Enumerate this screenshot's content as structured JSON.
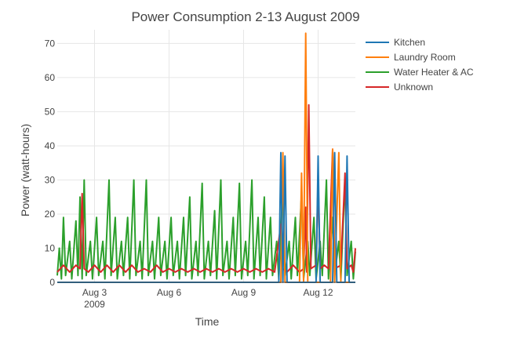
{
  "chart_data": {
    "type": "line",
    "title": "Power Consumption 2-13 August 2009",
    "xlabel": "Time",
    "ylabel": "Power (watt-hours)",
    "x_range": [
      "2009-08-01 12:00",
      "2009-08-13 12:00"
    ],
    "ylim": [
      0,
      74
    ],
    "x_ticks": [
      {
        "date": "2009-08-03",
        "label": "Aug 3",
        "sublabel": "2009"
      },
      {
        "date": "2009-08-06",
        "label": "Aug 6",
        "sublabel": ""
      },
      {
        "date": "2009-08-09",
        "label": "Aug 9",
        "sublabel": ""
      },
      {
        "date": "2009-08-12",
        "label": "Aug 12",
        "sublabel": ""
      }
    ],
    "y_ticks": [
      0,
      10,
      20,
      30,
      40,
      50,
      60,
      70
    ],
    "grid": true,
    "legend_position": "top-right",
    "series": [
      {
        "name": "Water Heater & AC",
        "color": "#2ca02c",
        "points": [
          [
            "2009-08-01 12:00",
            2
          ],
          [
            "2009-08-01 14:00",
            10
          ],
          [
            "2009-08-01 16:00",
            1
          ],
          [
            "2009-08-01 18:00",
            19
          ],
          [
            "2009-08-01 20:00",
            2
          ],
          [
            "2009-08-02 00:00",
            12
          ],
          [
            "2009-08-02 02:00",
            1
          ],
          [
            "2009-08-02 06:00",
            18
          ],
          [
            "2009-08-02 08:00",
            2
          ],
          [
            "2009-08-02 10:00",
            25
          ],
          [
            "2009-08-02 12:00",
            1
          ],
          [
            "2009-08-02 14:00",
            30
          ],
          [
            "2009-08-02 16:00",
            2
          ],
          [
            "2009-08-02 20:00",
            12
          ],
          [
            "2009-08-02 22:00",
            1
          ],
          [
            "2009-08-03 02:00",
            19
          ],
          [
            "2009-08-03 04:00",
            2
          ],
          [
            "2009-08-03 08:00",
            12
          ],
          [
            "2009-08-03 10:00",
            1
          ],
          [
            "2009-08-03 14:00",
            30
          ],
          [
            "2009-08-03 16:00",
            2
          ],
          [
            "2009-08-03 20:00",
            19
          ],
          [
            "2009-08-03 22:00",
            1
          ],
          [
            "2009-08-04 02:00",
            12
          ],
          [
            "2009-08-04 04:00",
            2
          ],
          [
            "2009-08-04 08:00",
            19
          ],
          [
            "2009-08-04 10:00",
            1
          ],
          [
            "2009-08-04 14:00",
            30
          ],
          [
            "2009-08-04 16:00",
            2
          ],
          [
            "2009-08-04 20:00",
            12
          ],
          [
            "2009-08-04 22:00",
            1
          ],
          [
            "2009-08-05 02:00",
            30
          ],
          [
            "2009-08-05 04:00",
            2
          ],
          [
            "2009-08-05 08:00",
            12
          ],
          [
            "2009-08-05 10:00",
            1
          ],
          [
            "2009-08-05 14:00",
            19
          ],
          [
            "2009-08-05 16:00",
            2
          ],
          [
            "2009-08-05 20:00",
            12
          ],
          [
            "2009-08-05 22:00",
            1
          ],
          [
            "2009-08-06 02:00",
            19
          ],
          [
            "2009-08-06 04:00",
            2
          ],
          [
            "2009-08-06 08:00",
            12
          ],
          [
            "2009-08-06 10:00",
            1
          ],
          [
            "2009-08-06 14:00",
            19
          ],
          [
            "2009-08-06 16:00",
            2
          ],
          [
            "2009-08-06 20:00",
            25
          ],
          [
            "2009-08-06 22:00",
            1
          ],
          [
            "2009-08-07 02:00",
            12
          ],
          [
            "2009-08-07 04:00",
            2
          ],
          [
            "2009-08-07 08:00",
            29
          ],
          [
            "2009-08-07 10:00",
            1
          ],
          [
            "2009-08-07 14:00",
            12
          ],
          [
            "2009-08-07 16:00",
            2
          ],
          [
            "2009-08-07 20:00",
            21
          ],
          [
            "2009-08-07 22:00",
            1
          ],
          [
            "2009-08-08 02:00",
            30
          ],
          [
            "2009-08-08 04:00",
            2
          ],
          [
            "2009-08-08 08:00",
            12
          ],
          [
            "2009-08-08 10:00",
            1
          ],
          [
            "2009-08-08 14:00",
            19
          ],
          [
            "2009-08-08 16:00",
            2
          ],
          [
            "2009-08-08 20:00",
            29
          ],
          [
            "2009-08-08 22:00",
            1
          ],
          [
            "2009-08-09 02:00",
            12
          ],
          [
            "2009-08-09 04:00",
            2
          ],
          [
            "2009-08-09 08:00",
            30
          ],
          [
            "2009-08-09 10:00",
            1
          ],
          [
            "2009-08-09 14:00",
            19
          ],
          [
            "2009-08-09 16:00",
            2
          ],
          [
            "2009-08-09 20:00",
            25
          ],
          [
            "2009-08-09 22:00",
            1
          ],
          [
            "2009-08-10 02:00",
            19
          ],
          [
            "2009-08-10 04:00",
            2
          ],
          [
            "2009-08-10 08:00",
            12
          ],
          [
            "2009-08-10 10:00",
            1
          ],
          [
            "2009-08-10 14:00",
            29
          ],
          [
            "2009-08-10 16:00",
            2
          ],
          [
            "2009-08-10 20:00",
            12
          ],
          [
            "2009-08-10 22:00",
            1
          ],
          [
            "2009-08-11 02:00",
            19
          ],
          [
            "2009-08-11 04:00",
            2
          ],
          [
            "2009-08-11 08:00",
            26
          ],
          [
            "2009-08-11 10:00",
            1
          ],
          [
            "2009-08-11 14:00",
            12
          ],
          [
            "2009-08-11 16:00",
            2
          ],
          [
            "2009-08-11 20:00",
            19
          ],
          [
            "2009-08-11 22:00",
            1
          ],
          [
            "2009-08-12 02:00",
            12
          ],
          [
            "2009-08-12 04:00",
            2
          ],
          [
            "2009-08-12 08:00",
            30
          ],
          [
            "2009-08-12 10:00",
            1
          ],
          [
            "2009-08-12 14:00",
            19
          ],
          [
            "2009-08-12 16:00",
            2
          ],
          [
            "2009-08-12 20:00",
            12
          ],
          [
            "2009-08-12 22:00",
            1
          ],
          [
            "2009-08-13 02:00",
            30
          ],
          [
            "2009-08-13 04:00",
            2
          ],
          [
            "2009-08-13 08:00",
            12
          ],
          [
            "2009-08-13 10:00",
            1
          ],
          [
            "2009-08-13 12:00",
            9
          ]
        ]
      },
      {
        "name": "Unknown",
        "color": "#d62728",
        "points": [
          [
            "2009-08-01 12:00",
            3
          ],
          [
            "2009-08-01 18:00",
            5
          ],
          [
            "2009-08-02 00:00",
            3
          ],
          [
            "2009-08-02 06:00",
            5
          ],
          [
            "2009-08-02 10:00",
            4
          ],
          [
            "2009-08-02 12:00",
            26
          ],
          [
            "2009-08-02 14:00",
            4
          ],
          [
            "2009-08-02 18:00",
            3
          ],
          [
            "2009-08-03 00:00",
            5
          ],
          [
            "2009-08-03 06:00",
            3
          ],
          [
            "2009-08-03 12:00",
            5
          ],
          [
            "2009-08-03 18:00",
            3
          ],
          [
            "2009-08-04 00:00",
            5
          ],
          [
            "2009-08-04 06:00",
            3
          ],
          [
            "2009-08-04 12:00",
            5
          ],
          [
            "2009-08-04 18:00",
            3
          ],
          [
            "2009-08-05 00:00",
            4
          ],
          [
            "2009-08-05 06:00",
            3
          ],
          [
            "2009-08-05 12:00",
            5
          ],
          [
            "2009-08-05 18:00",
            3
          ],
          [
            "2009-08-06 00:00",
            4
          ],
          [
            "2009-08-06 06:00",
            3
          ],
          [
            "2009-08-06 12:00",
            4
          ],
          [
            "2009-08-06 18:00",
            3
          ],
          [
            "2009-08-07 00:00",
            4
          ],
          [
            "2009-08-07 06:00",
            3
          ],
          [
            "2009-08-07 12:00",
            4
          ],
          [
            "2009-08-07 18:00",
            3
          ],
          [
            "2009-08-08 00:00",
            4
          ],
          [
            "2009-08-08 06:00",
            3
          ],
          [
            "2009-08-08 12:00",
            4
          ],
          [
            "2009-08-08 18:00",
            3
          ],
          [
            "2009-08-09 00:00",
            4
          ],
          [
            "2009-08-09 06:00",
            3
          ],
          [
            "2009-08-09 12:00",
            4
          ],
          [
            "2009-08-09 18:00",
            3
          ],
          [
            "2009-08-10 00:00",
            4
          ],
          [
            "2009-08-10 06:00",
            3
          ],
          [
            "2009-08-10 12:00",
            17
          ],
          [
            "2009-08-10 14:00",
            4
          ],
          [
            "2009-08-10 18:00",
            3
          ],
          [
            "2009-08-11 00:00",
            5
          ],
          [
            "2009-08-11 06:00",
            3
          ],
          [
            "2009-08-11 10:00",
            4
          ],
          [
            "2009-08-11 12:00",
            22
          ],
          [
            "2009-08-11 13:00",
            3
          ],
          [
            "2009-08-11 15:00",
            52
          ],
          [
            "2009-08-11 17:00",
            4
          ],
          [
            "2009-08-11 22:00",
            5
          ],
          [
            "2009-08-12 00:00",
            30
          ],
          [
            "2009-08-12 02:00",
            4
          ],
          [
            "2009-08-12 06:00",
            5
          ],
          [
            "2009-08-12 10:00",
            4
          ],
          [
            "2009-08-12 14:00",
            39
          ],
          [
            "2009-08-12 16:00",
            4
          ],
          [
            "2009-08-12 22:00",
            5
          ],
          [
            "2009-08-13 02:00",
            32
          ],
          [
            "2009-08-13 04:00",
            4
          ],
          [
            "2009-08-13 08:00",
            5
          ],
          [
            "2009-08-13 10:00",
            3
          ],
          [
            "2009-08-13 12:00",
            10
          ]
        ]
      },
      {
        "name": "Laundry Room",
        "color": "#ff7f0e",
        "points": [
          [
            "2009-08-01 12:00",
            0
          ],
          [
            "2009-08-10 12:00",
            0
          ],
          [
            "2009-08-10 14:00",
            38
          ],
          [
            "2009-08-10 16:00",
            0
          ],
          [
            "2009-08-11 06:00",
            0
          ],
          [
            "2009-08-11 08:00",
            32
          ],
          [
            "2009-08-11 10:00",
            0
          ],
          [
            "2009-08-11 12:00",
            73
          ],
          [
            "2009-08-11 14:00",
            0
          ],
          [
            "2009-08-12 12:00",
            0
          ],
          [
            "2009-08-12 14:00",
            39
          ],
          [
            "2009-08-12 16:00",
            0
          ],
          [
            "2009-08-12 20:00",
            38
          ],
          [
            "2009-08-12 22:00",
            0
          ],
          [
            "2009-08-13 12:00",
            0
          ]
        ]
      },
      {
        "name": "Kitchen",
        "color": "#1f77b4",
        "points": [
          [
            "2009-08-01 12:00",
            0
          ],
          [
            "2009-08-10 10:00",
            0
          ],
          [
            "2009-08-10 12:00",
            38
          ],
          [
            "2009-08-10 14:00",
            0
          ],
          [
            "2009-08-10 16:00",
            37
          ],
          [
            "2009-08-10 18:00",
            0
          ],
          [
            "2009-08-11 22:00",
            0
          ],
          [
            "2009-08-12 00:00",
            37
          ],
          [
            "2009-08-12 02:00",
            0
          ],
          [
            "2009-08-12 14:00",
            0
          ],
          [
            "2009-08-12 16:00",
            38
          ],
          [
            "2009-08-12 18:00",
            0
          ],
          [
            "2009-08-13 02:00",
            0
          ],
          [
            "2009-08-13 04:00",
            37
          ],
          [
            "2009-08-13 06:00",
            0
          ],
          [
            "2009-08-13 12:00",
            0
          ]
        ]
      }
    ],
    "legend": [
      "Kitchen",
      "Laundry Room",
      "Water Heater & AC",
      "Unknown"
    ]
  }
}
